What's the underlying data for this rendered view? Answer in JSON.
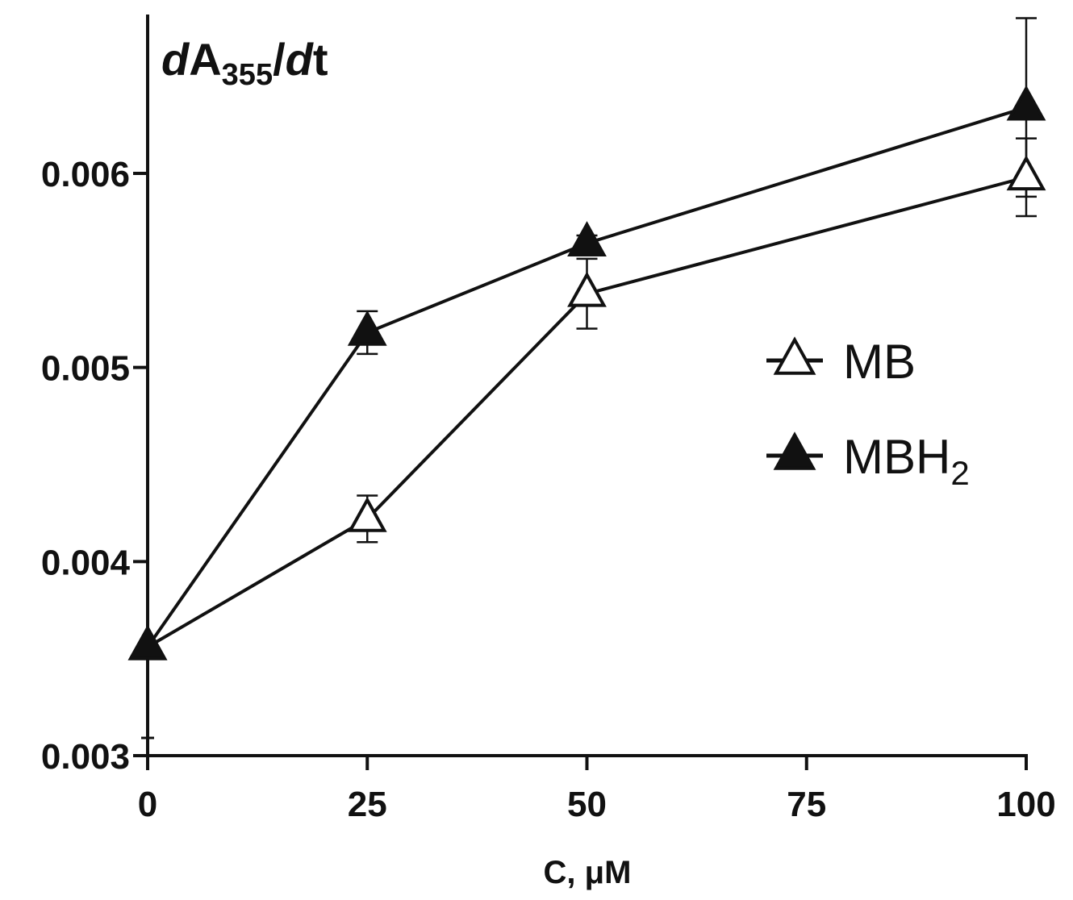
{
  "chart_data": {
    "type": "line",
    "ylabel": {
      "d1": "d",
      "a": "A",
      "sub": "355",
      "slash": "/",
      "d2": "d",
      "t": "t"
    },
    "xlabel": "C, μM",
    "x_ticks": [
      "0",
      "25",
      "50",
      "75",
      "100"
    ],
    "y_ticks": [
      "0.003",
      "0.004",
      "0.005",
      "0.006"
    ],
    "xlim": [
      0,
      100
    ],
    "ylim": [
      0.003,
      0.0068
    ],
    "grid": false,
    "legend_position": "right",
    "series": [
      {
        "name": "MB",
        "name_sub": "",
        "marker": "open-triangle",
        "x": [
          0,
          25,
          50,
          100
        ],
        "y": [
          0.00356,
          0.00422,
          0.00538,
          0.00598
        ],
        "err": [
          0.0,
          0.00012,
          0.00018,
          0.0002
        ]
      },
      {
        "name": "MBH",
        "name_sub": "2",
        "marker": "filled-triangle",
        "x": [
          0,
          25,
          50,
          100
        ],
        "y": [
          0.00356,
          0.00518,
          0.00564,
          0.00634
        ],
        "err": [
          0.0,
          0.00011,
          4e-05,
          0.00046
        ]
      }
    ],
    "colors": {
      "line": "#111111",
      "open_fill": "#ffffff",
      "filled": "#111111"
    }
  }
}
